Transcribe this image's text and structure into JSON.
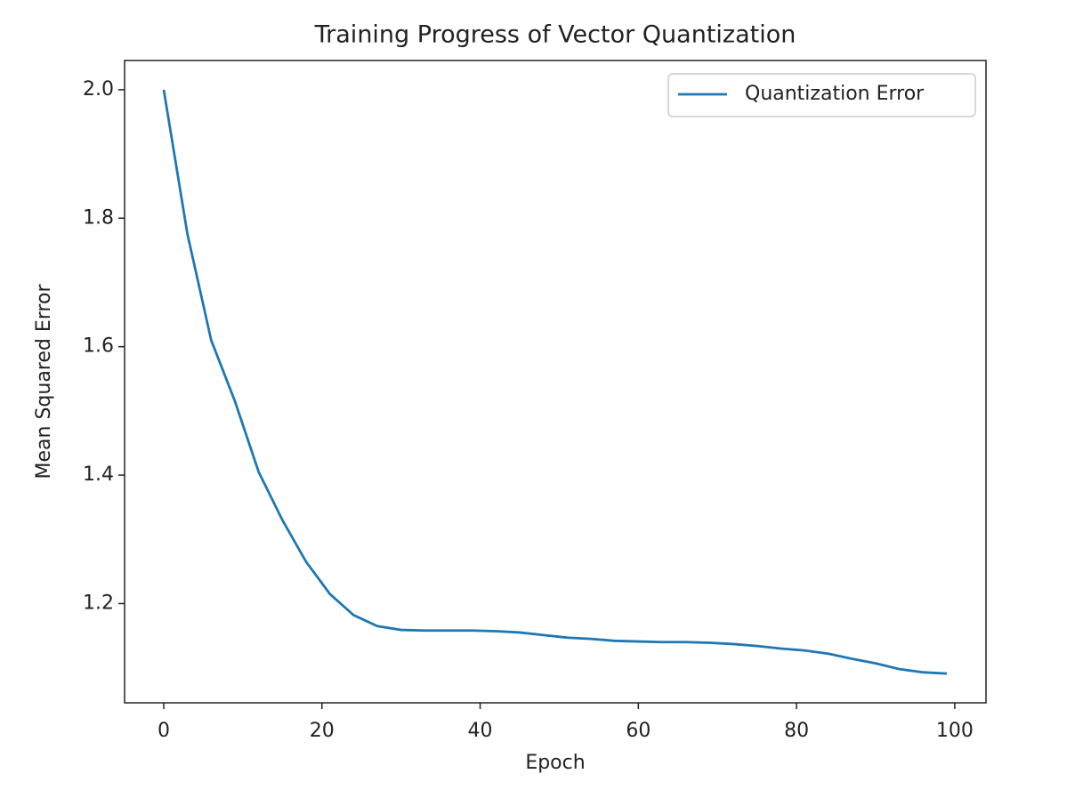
{
  "chart_data": {
    "type": "line",
    "title": "Training Progress of Vector Quantization",
    "xlabel": "Epoch",
    "ylabel": "Mean Squared Error",
    "x": [
      0,
      3,
      6,
      9,
      12,
      15,
      18,
      21,
      24,
      27,
      30,
      33,
      36,
      39,
      42,
      45,
      48,
      51,
      54,
      57,
      60,
      63,
      66,
      69,
      72,
      75,
      78,
      81,
      84,
      87,
      90,
      93,
      96,
      99
    ],
    "series": [
      {
        "name": "Quantization Error",
        "color": "#1f77b4",
        "values": [
          2.0,
          1.775,
          1.61,
          1.515,
          1.405,
          1.33,
          1.265,
          1.215,
          1.182,
          1.165,
          1.159,
          1.158,
          1.158,
          1.158,
          1.157,
          1.155,
          1.151,
          1.147,
          1.145,
          1.142,
          1.141,
          1.14,
          1.14,
          1.139,
          1.137,
          1.134,
          1.13,
          1.127,
          1.122,
          1.114,
          1.107,
          1.098,
          1.093,
          1.091
        ]
      }
    ],
    "xlim": [
      -4.95,
      103.95
    ],
    "ylim": [
      1.0455,
      2.0455
    ],
    "xticks": [
      0,
      20,
      40,
      60,
      80,
      100
    ],
    "yticks": [
      1.2,
      1.4,
      1.6,
      1.8,
      {
        "value": 2,
        "label": "2.0"
      }
    ],
    "grid": false,
    "legend": "upper right"
  }
}
